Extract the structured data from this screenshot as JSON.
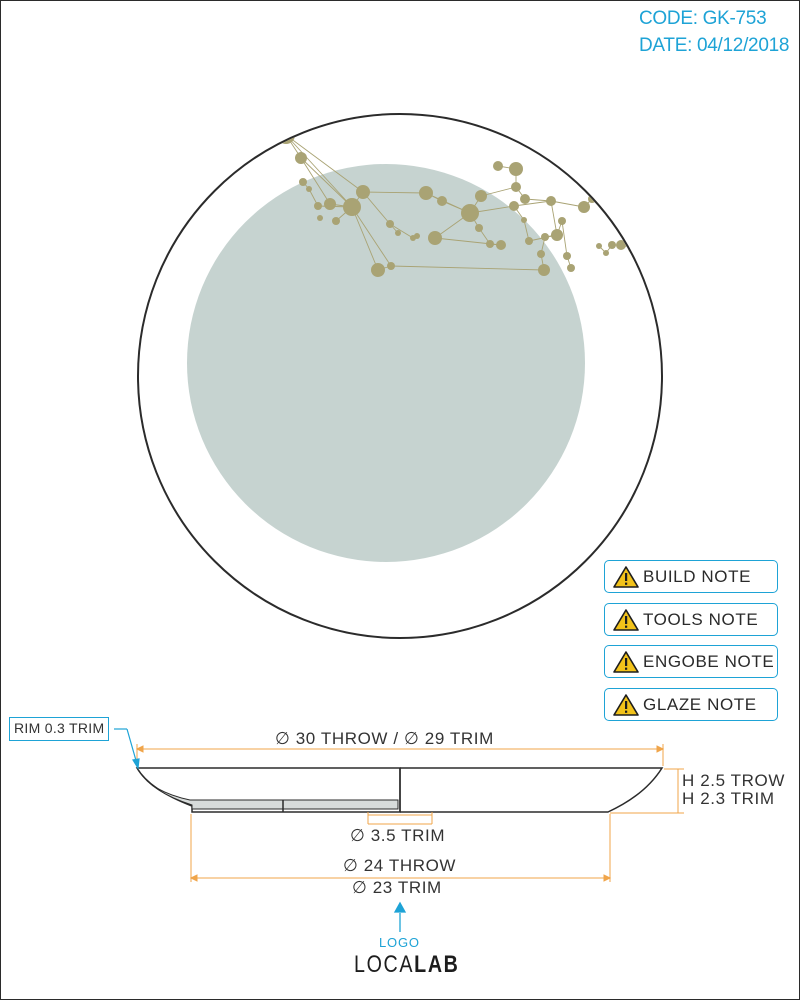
{
  "header": {
    "code": "CODE: GK-753",
    "date": "DATE: 04/12/2018"
  },
  "colors": {
    "accent": "#1ea3d6",
    "dimension_line": "#f0a54a",
    "glaze_circle": "#c6d3d0",
    "decoration": "#a9a374",
    "outline": "#2b2b2b"
  },
  "notes": [
    {
      "icon": "warning-icon",
      "label": "BUILD NOTE"
    },
    {
      "icon": "warning-icon",
      "label": "TOOLS NOTE"
    },
    {
      "icon": "warning-icon",
      "label": "ENGOBE NOTE"
    },
    {
      "icon": "warning-icon",
      "label": "GLAZE NOTE"
    }
  ],
  "profile": {
    "rim_callout": "RIM 0.3 TRIM",
    "top_diameter": "∅ 30 THROW / ∅ 29 TRIM",
    "foot_diameter": "∅ 3.5 TRIM",
    "base_throw": "∅ 24 THROW",
    "base_trim": "∅ 23 TRIM",
    "height_throw": "H 2.5 TROW",
    "height_trim": "H 2.3 TRIM"
  },
  "logo": {
    "label": "LOGO",
    "brand_light": "LOCA",
    "brand_bold": "LAB"
  }
}
